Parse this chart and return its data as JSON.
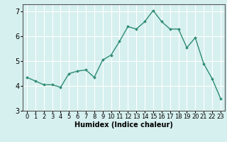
{
  "x": [
    0,
    1,
    2,
    3,
    4,
    5,
    6,
    7,
    8,
    9,
    10,
    11,
    12,
    13,
    14,
    15,
    16,
    17,
    18,
    19,
    20,
    21,
    22,
    23
  ],
  "y": [
    4.35,
    4.2,
    4.05,
    4.05,
    3.95,
    4.5,
    4.6,
    4.65,
    4.35,
    5.05,
    5.25,
    5.8,
    6.4,
    6.3,
    6.6,
    7.05,
    6.6,
    6.3,
    6.3,
    5.55,
    5.95,
    4.9,
    4.3,
    3.5
  ],
  "line_color": "#2e8b73",
  "marker": "D",
  "marker_size": 1.8,
  "bg_color": "#d6f0ef",
  "grid_color": "#ffffff",
  "xlabel": "Humidex (Indice chaleur)",
  "ylim": [
    3,
    7.3
  ],
  "xlim": [
    -0.5,
    23.5
  ],
  "yticks": [
    3,
    4,
    5,
    6,
    7
  ],
  "xticks": [
    0,
    1,
    2,
    3,
    4,
    5,
    6,
    7,
    8,
    9,
    10,
    11,
    12,
    13,
    14,
    15,
    16,
    17,
    18,
    19,
    20,
    21,
    22,
    23
  ],
  "title_fontsize": 8,
  "xlabel_fontsize": 7,
  "tick_fontsize": 6,
  "line_width": 1.0,
  "spine_color": "#555555"
}
